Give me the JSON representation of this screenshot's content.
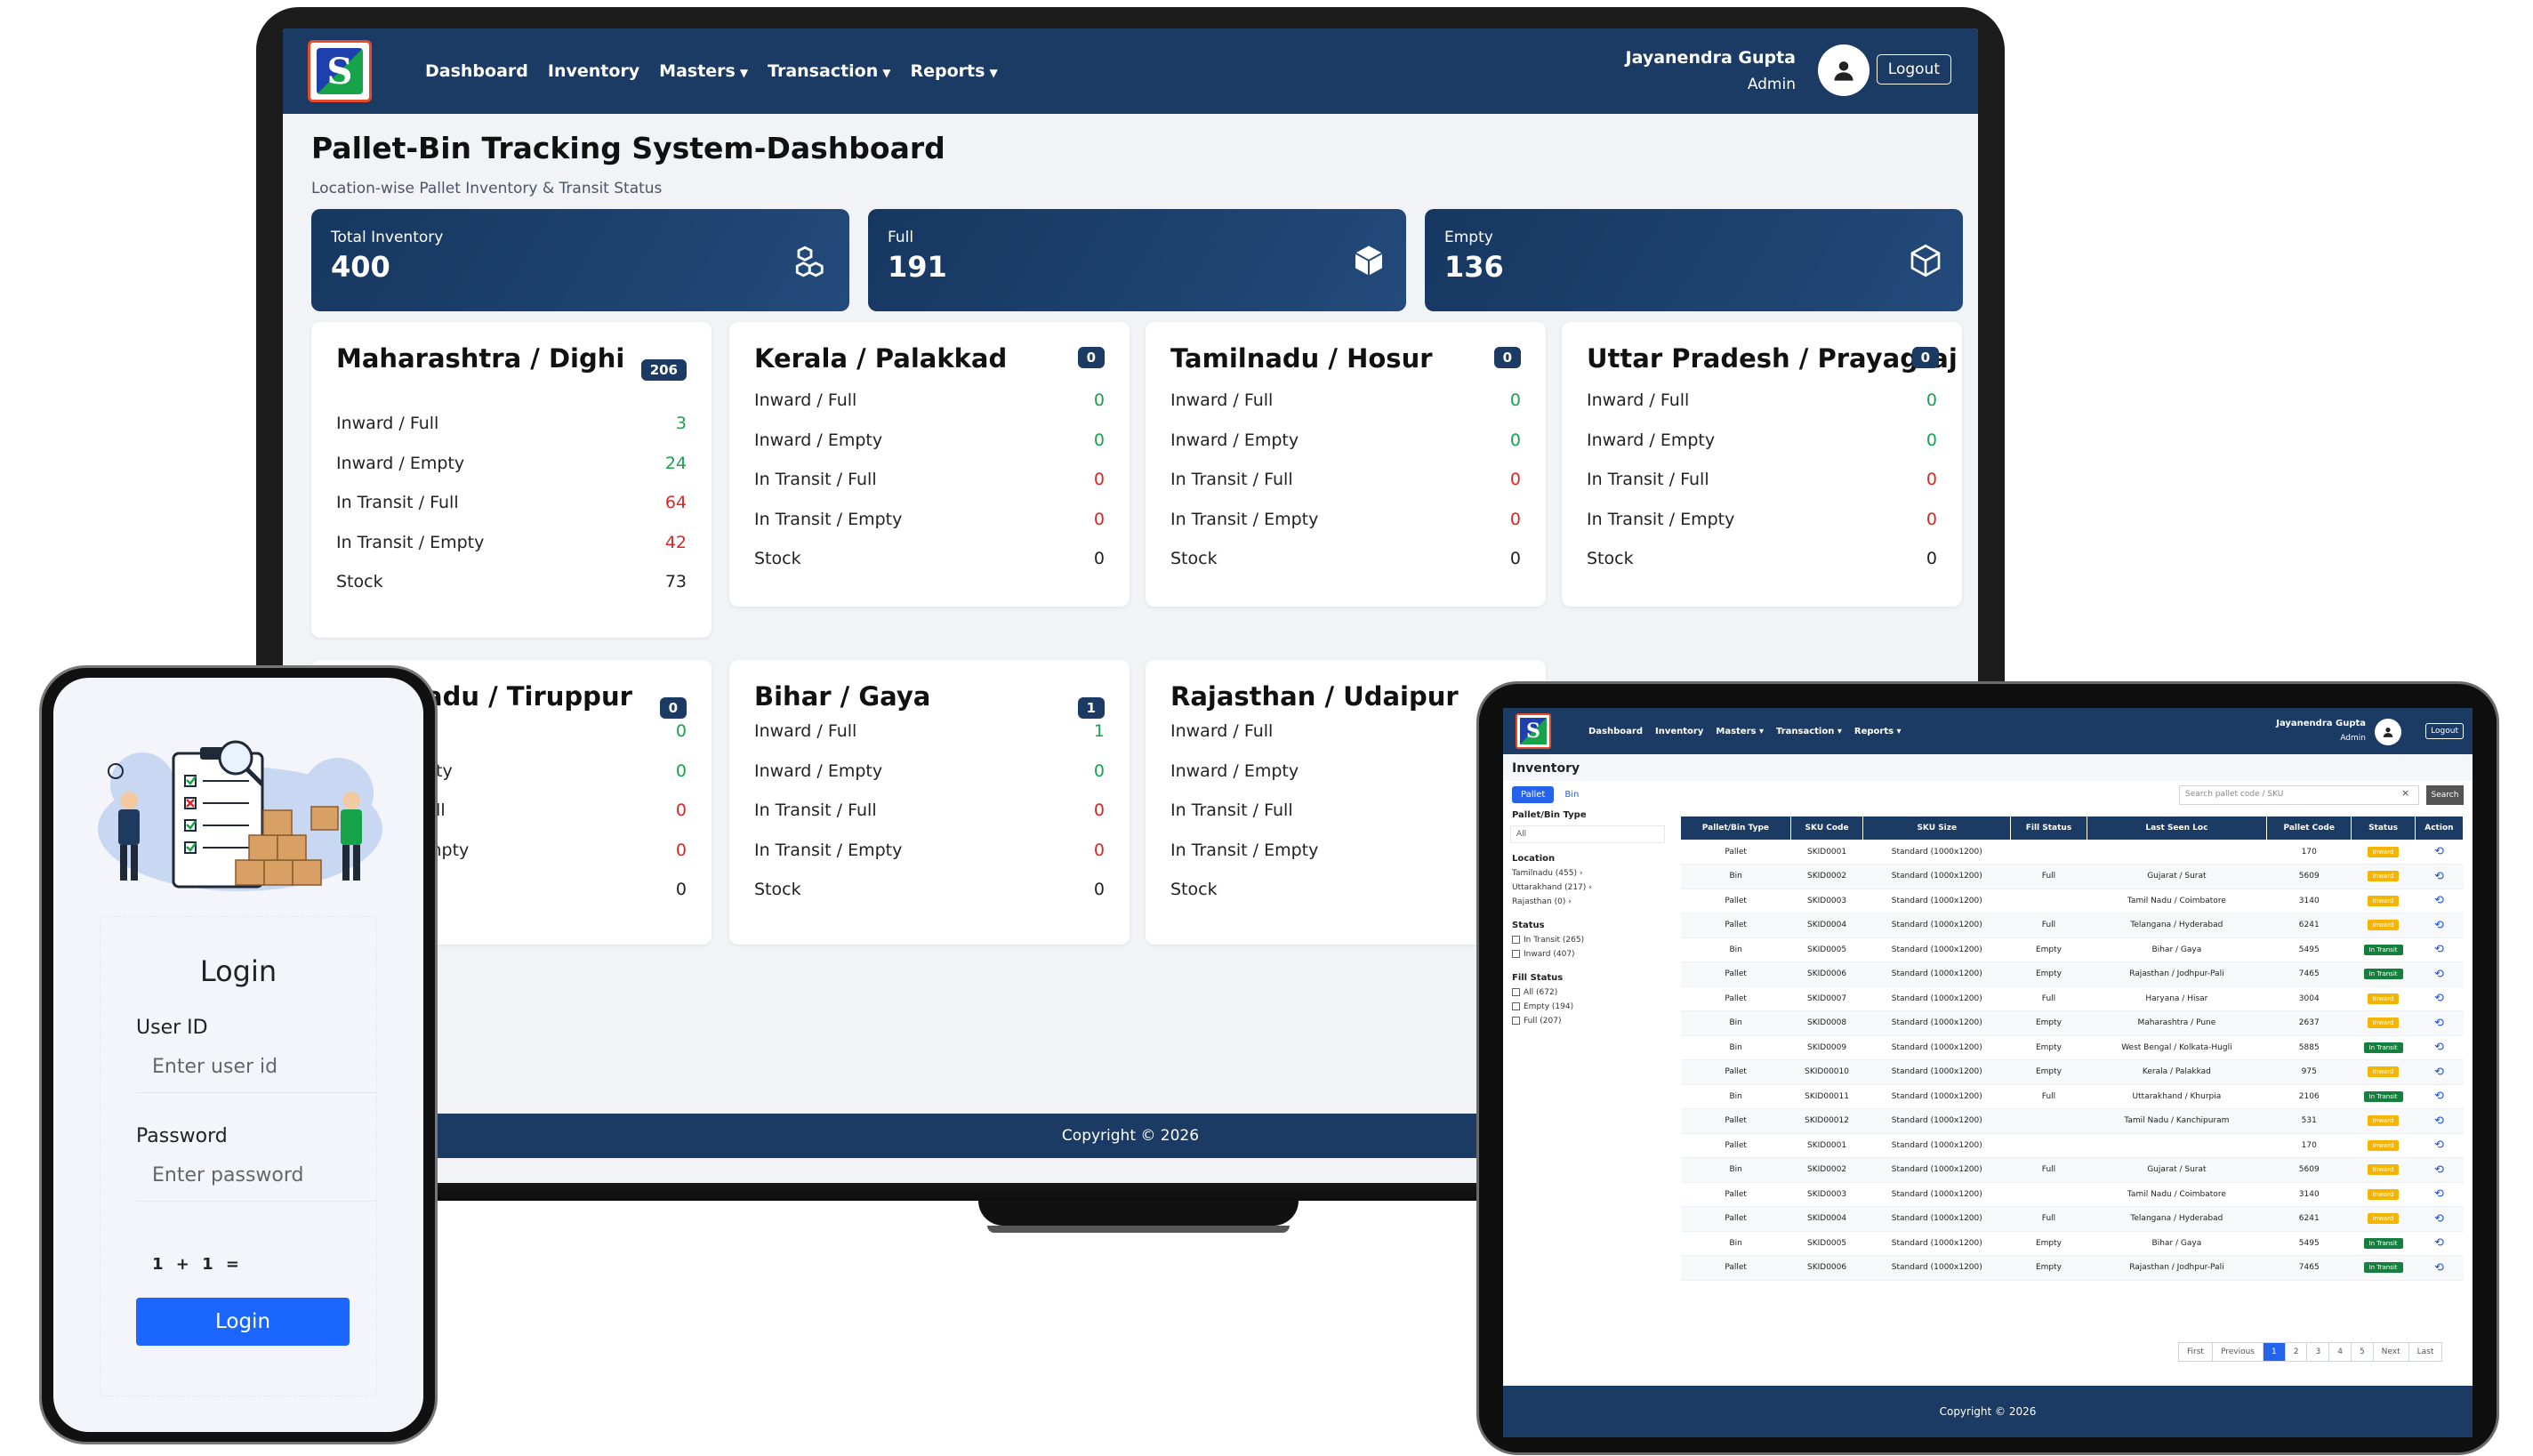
{
  "brand": {
    "logo_letter": "S",
    "colors": {
      "navy": "#1b3b64",
      "green": "#16a34a",
      "red": "#dc2626",
      "blue": "#1a66ff"
    }
  },
  "nav": {
    "items": [
      "Dashboard",
      "Inventory",
      "Masters",
      "Transaction",
      "Reports"
    ],
    "user_name": "Jayanendra Gupta",
    "user_role": "Admin",
    "logout": "Logout"
  },
  "dashboard": {
    "title": "Pallet-Bin Tracking System-Dashboard",
    "subtitle": "Location-wise Pallet Inventory & Transit Status",
    "stats": [
      {
        "label": "Total Inventory",
        "value": "400",
        "icon": "boxes-icon"
      },
      {
        "label": "Full",
        "value": "191",
        "icon": "box-filled-icon"
      },
      {
        "label": "Empty",
        "value": "136",
        "icon": "box-outline-icon"
      }
    ],
    "cards": [
      {
        "title": "Maharashtra / Dighi",
        "badge": "206",
        "rows": [
          [
            "Inward / Full",
            "3",
            "green"
          ],
          [
            "Inward / Empty",
            "24",
            "green"
          ],
          [
            "In Transit / Full",
            "64",
            "red"
          ],
          [
            "In Transit / Empty",
            "42",
            "red"
          ],
          [
            "Stock",
            "73",
            "dark"
          ]
        ]
      },
      {
        "title": "Kerala / Palakkad",
        "badge": "0",
        "rows": [
          [
            "Inward / Full",
            "0",
            "green"
          ],
          [
            "Inward / Empty",
            "0",
            "green"
          ],
          [
            "In Transit / Full",
            "0",
            "red"
          ],
          [
            "In Transit / Empty",
            "0",
            "red"
          ],
          [
            "Stock",
            "0",
            "dark"
          ]
        ]
      },
      {
        "title": "Tamilnadu / Hosur",
        "badge": "0",
        "rows": [
          [
            "Inward / Full",
            "0",
            "green"
          ],
          [
            "Inward / Empty",
            "0",
            "green"
          ],
          [
            "In Transit / Full",
            "0",
            "red"
          ],
          [
            "In Transit / Empty",
            "0",
            "red"
          ],
          [
            "Stock",
            "0",
            "dark"
          ]
        ]
      },
      {
        "title": "Uttar Pradesh / Prayagraj",
        "badge": "0",
        "rows": [
          [
            "Inward / Full",
            "0",
            "green"
          ],
          [
            "Inward / Empty",
            "0",
            "green"
          ],
          [
            "In Transit / Full",
            "0",
            "red"
          ],
          [
            "In Transit / Empty",
            "0",
            "red"
          ],
          [
            "Stock",
            "0",
            "dark"
          ]
        ]
      },
      {
        "title": "adu / Tiruppur",
        "badge": "0",
        "rows": [
          [
            "",
            "0",
            "green"
          ],
          [
            "pty",
            "0",
            "green"
          ],
          [
            "ull",
            "0",
            "red"
          ],
          [
            "mpty",
            "0",
            "red"
          ],
          [
            "",
            "0",
            "dark"
          ]
        ]
      },
      {
        "title": "Bihar / Gaya",
        "badge": "1",
        "rows": [
          [
            "Inward / Full",
            "1",
            "green"
          ],
          [
            "Inward / Empty",
            "0",
            "green"
          ],
          [
            "In Transit / Full",
            "0",
            "red"
          ],
          [
            "In Transit / Empty",
            "0",
            "red"
          ],
          [
            "Stock",
            "0",
            "dark"
          ]
        ]
      },
      {
        "title": "Rajasthan / Udaipur",
        "badge": "",
        "rows": [
          [
            "Inward / Full",
            "",
            ""
          ],
          [
            "Inward / Empty",
            "",
            ""
          ],
          [
            "In Transit / Full",
            "",
            ""
          ],
          [
            "In Transit / Empty",
            "",
            ""
          ],
          [
            "Stock",
            "",
            ""
          ]
        ]
      }
    ],
    "footer": "Copyright © 2026"
  },
  "login": {
    "title": "Login",
    "user_label": "User ID",
    "user_placeholder": "Enter user id",
    "password_label": "Password",
    "password_placeholder": "Enter password",
    "captcha": "1 + 1 =",
    "button": "Login"
  },
  "inventory": {
    "title": "Inventory",
    "tabs": [
      "Pallet",
      "Bin"
    ],
    "search_placeholder": "Search pallet code / SKU",
    "search_clear": "×",
    "search_button": "Search",
    "sidebar": {
      "type_heading": "Pallet/Bin Type",
      "type_value": "All",
      "location_heading": "Location",
      "locations": [
        "Tamilnadu (455)",
        "Uttarakhand (217)",
        "Rajasthan (0)"
      ],
      "status_heading": "Status",
      "statuses": [
        "In Transit (265)",
        "Inward (407)"
      ],
      "fill_heading": "Fill Status",
      "fills": [
        "All (672)",
        "Empty (194)",
        "Full (207)"
      ]
    },
    "columns": [
      "Pallet/Bin Type",
      "SKU Code",
      "SKU Size",
      "Fill Status",
      "Last Seen Loc",
      "Pallet Code",
      "Status",
      "Action"
    ],
    "rows": [
      [
        "Pallet",
        "SKID0001",
        "Standard (1000x1200)",
        "",
        "",
        "170",
        "Inward"
      ],
      [
        "Bin",
        "SKID0002",
        "Standard (1000x1200)",
        "Full",
        "Gujarat / Surat",
        "5609",
        "Inward"
      ],
      [
        "Pallet",
        "SKID0003",
        "Standard (1000x1200)",
        "",
        "Tamil Nadu / Coimbatore",
        "3140",
        "Inward"
      ],
      [
        "Pallet",
        "SKID0004",
        "Standard (1000x1200)",
        "Full",
        "Telangana / Hyderabad",
        "6241",
        "Inward"
      ],
      [
        "Bin",
        "SKID0005",
        "Standard (1000x1200)",
        "Empty",
        "Bihar / Gaya",
        "5495",
        "In Transit"
      ],
      [
        "Pallet",
        "SKID0006",
        "Standard (1000x1200)",
        "Empty",
        "Rajasthan / Jodhpur-Pali",
        "7465",
        "In Transit"
      ],
      [
        "Pallet",
        "SKID0007",
        "Standard (1000x1200)",
        "Full",
        "Haryana / Hisar",
        "3004",
        "Inward"
      ],
      [
        "Bin",
        "SKID0008",
        "Standard (1000x1200)",
        "Empty",
        "Maharashtra / Pune",
        "2637",
        "Inward"
      ],
      [
        "Bin",
        "SKID0009",
        "Standard (1000x1200)",
        "Empty",
        "West Bengal / Kolkata-Hugli",
        "5885",
        "In Transit"
      ],
      [
        "Pallet",
        "SKID00010",
        "Standard (1000x1200)",
        "Empty",
        "Kerala / Palakkad",
        "975",
        "Inward"
      ],
      [
        "Bin",
        "SKID00011",
        "Standard (1000x1200)",
        "Full",
        "Uttarakhand / Khurpia",
        "2106",
        "In Transit"
      ],
      [
        "Pallet",
        "SKID00012",
        "Standard (1000x1200)",
        "",
        "Tamil Nadu / Kanchipuram",
        "531",
        "Inward"
      ],
      [
        "Pallet",
        "SKID0001",
        "Standard (1000x1200)",
        "",
        "",
        "170",
        "Inward"
      ],
      [
        "Bin",
        "SKID0002",
        "Standard (1000x1200)",
        "Full",
        "Gujarat / Surat",
        "5609",
        "Inward"
      ],
      [
        "Pallet",
        "SKID0003",
        "Standard (1000x1200)",
        "",
        "Tamil Nadu / Coimbatore",
        "3140",
        "Inward"
      ],
      [
        "Pallet",
        "SKID0004",
        "Standard (1000x1200)",
        "Full",
        "Telangana / Hyderabad",
        "6241",
        "Inward"
      ],
      [
        "Bin",
        "SKID0005",
        "Standard (1000x1200)",
        "Empty",
        "Bihar / Gaya",
        "5495",
        "In Transit"
      ],
      [
        "Pallet",
        "SKID0006",
        "Standard (1000x1200)",
        "Empty",
        "Rajasthan / Jodhpur-Pali",
        "7465",
        "In Transit"
      ]
    ],
    "pager": [
      "First",
      "Previous",
      "1",
      "2",
      "3",
      "4",
      "5",
      "Next",
      "Last"
    ],
    "pager_active": "1",
    "footer": "Copyright © 2026"
  }
}
